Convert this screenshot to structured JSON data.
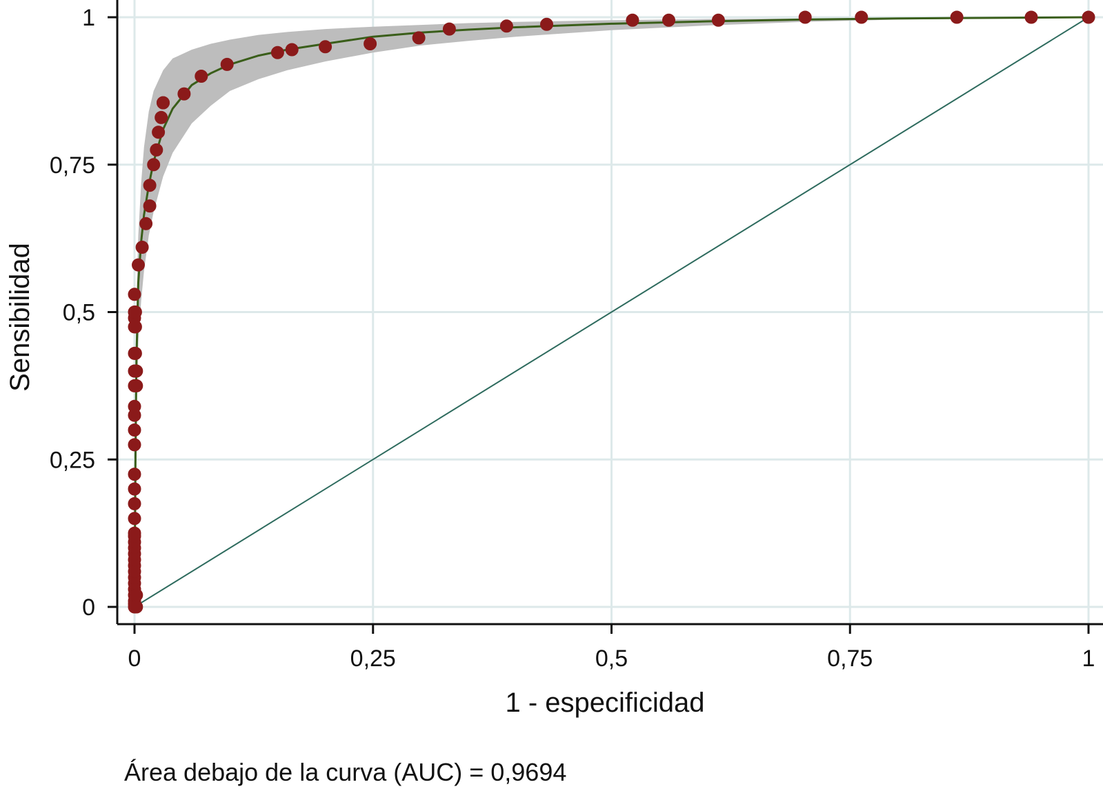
{
  "chart_data": {
    "type": "scatter",
    "title": "",
    "xlabel": "1 - especificidad",
    "ylabel": "Sensibilidad",
    "xlim": [
      0,
      1
    ],
    "ylim": [
      0,
      1
    ],
    "grid": true,
    "x_ticks": [
      {
        "value": 0,
        "label": "0"
      },
      {
        "value": 0.25,
        "label": "0,25"
      },
      {
        "value": 0.5,
        "label": "0,5"
      },
      {
        "value": 0.75,
        "label": "0,75"
      },
      {
        "value": 1,
        "label": "1"
      }
    ],
    "y_ticks": [
      {
        "value": 0,
        "label": "0"
      },
      {
        "value": 0.25,
        "label": "0,25"
      },
      {
        "value": 0.5,
        "label": "0,5"
      },
      {
        "value": 0.75,
        "label": "0,75"
      },
      {
        "value": 1,
        "label": "1"
      }
    ],
    "note": "Área debajo de la curva (AUC) = 0,9694",
    "colors": {
      "points": "#8b1a1a",
      "fitted_curve": "#3a5e1a",
      "confidence_band": "#bdbdbd",
      "reference_line": "#2e6b5e",
      "grid": "#dde9ea",
      "axis": "#111111"
    },
    "series": [
      {
        "kind": "points",
        "x": [
          0,
          0,
          0,
          0,
          0,
          0,
          0,
          0,
          0,
          0,
          0,
          0,
          0,
          0,
          0,
          0,
          0,
          0,
          0,
          0,
          0,
          0,
          0,
          0,
          0,
          0,
          0,
          0,
          0,
          0,
          0.001,
          0.001,
          0.001,
          0.002,
          0.002,
          0.002,
          0.002,
          0.004,
          0.008,
          0.012,
          0.016,
          0.016,
          0.02,
          0.023,
          0.025,
          0.028,
          0.03,
          0.03,
          0.052,
          0.07,
          0.097,
          0.15,
          0.165,
          0.2,
          0.247,
          0.298,
          0.33,
          0.39,
          0.432,
          0.522,
          0.56,
          0.612,
          0.703,
          0.762,
          0.862,
          0.94,
          1.0
        ],
        "y": [
          0,
          0.005,
          0.01,
          0.02,
          0.03,
          0.04,
          0.05,
          0.06,
          0.07,
          0.08,
          0.09,
          0.1,
          0.11,
          0.12,
          0.125,
          0.15,
          0.175,
          0.2,
          0.225,
          0.275,
          0.3,
          0.325,
          0.34,
          0.375,
          0.4,
          0.43,
          0.475,
          0.49,
          0.5,
          0.53,
          0.5,
          0.475,
          0.43,
          0.4,
          0.375,
          0.0,
          0.02,
          0.58,
          0.61,
          0.65,
          0.68,
          0.715,
          0.75,
          0.775,
          0.805,
          0.83,
          0.855,
          0.855,
          0.87,
          0.9,
          0.92,
          0.94,
          0.945,
          0.95,
          0.955,
          0.965,
          0.98,
          0.985,
          0.988,
          0.995,
          0.995,
          0.995,
          1.0,
          1.0,
          1.0,
          1.0,
          1.0
        ]
      },
      {
        "kind": "fitted_curve",
        "x": [
          0,
          0.001,
          0.002,
          0.004,
          0.007,
          0.01,
          0.015,
          0.02,
          0.03,
          0.04,
          0.06,
          0.08,
          0.1,
          0.13,
          0.16,
          0.2,
          0.25,
          0.3,
          0.35,
          0.4,
          0.5,
          0.6,
          0.7,
          0.8,
          0.9,
          1.0
        ],
        "y": [
          0,
          0.25,
          0.42,
          0.55,
          0.62,
          0.665,
          0.715,
          0.755,
          0.81,
          0.845,
          0.885,
          0.905,
          0.92,
          0.935,
          0.945,
          0.955,
          0.967,
          0.974,
          0.979,
          0.983,
          0.989,
          0.993,
          0.996,
          0.998,
          0.999,
          1.0
        ]
      },
      {
        "kind": "confidence_band",
        "x": [
          0.002,
          0.004,
          0.007,
          0.01,
          0.015,
          0.02,
          0.03,
          0.04,
          0.06,
          0.08,
          0.1,
          0.13,
          0.16,
          0.2,
          0.25,
          0.3,
          0.35,
          0.4,
          0.5,
          0.6,
          0.7,
          0.8,
          0.9,
          1.0
        ],
        "lower": [
          0.32,
          0.45,
          0.52,
          0.57,
          0.63,
          0.67,
          0.73,
          0.77,
          0.82,
          0.85,
          0.875,
          0.895,
          0.91,
          0.925,
          0.94,
          0.952,
          0.96,
          0.967,
          0.978,
          0.986,
          0.992,
          0.996,
          0.998,
          1.0
        ],
        "upper": [
          0.52,
          0.63,
          0.72,
          0.78,
          0.84,
          0.875,
          0.91,
          0.93,
          0.945,
          0.955,
          0.962,
          0.97,
          0.975,
          0.98,
          0.984,
          0.987,
          0.99,
          0.992,
          0.995,
          0.997,
          0.998,
          0.999,
          1.0,
          1.0
        ]
      },
      {
        "kind": "reference_line",
        "x": [
          0,
          1
        ],
        "y": [
          0,
          1
        ]
      }
    ]
  }
}
